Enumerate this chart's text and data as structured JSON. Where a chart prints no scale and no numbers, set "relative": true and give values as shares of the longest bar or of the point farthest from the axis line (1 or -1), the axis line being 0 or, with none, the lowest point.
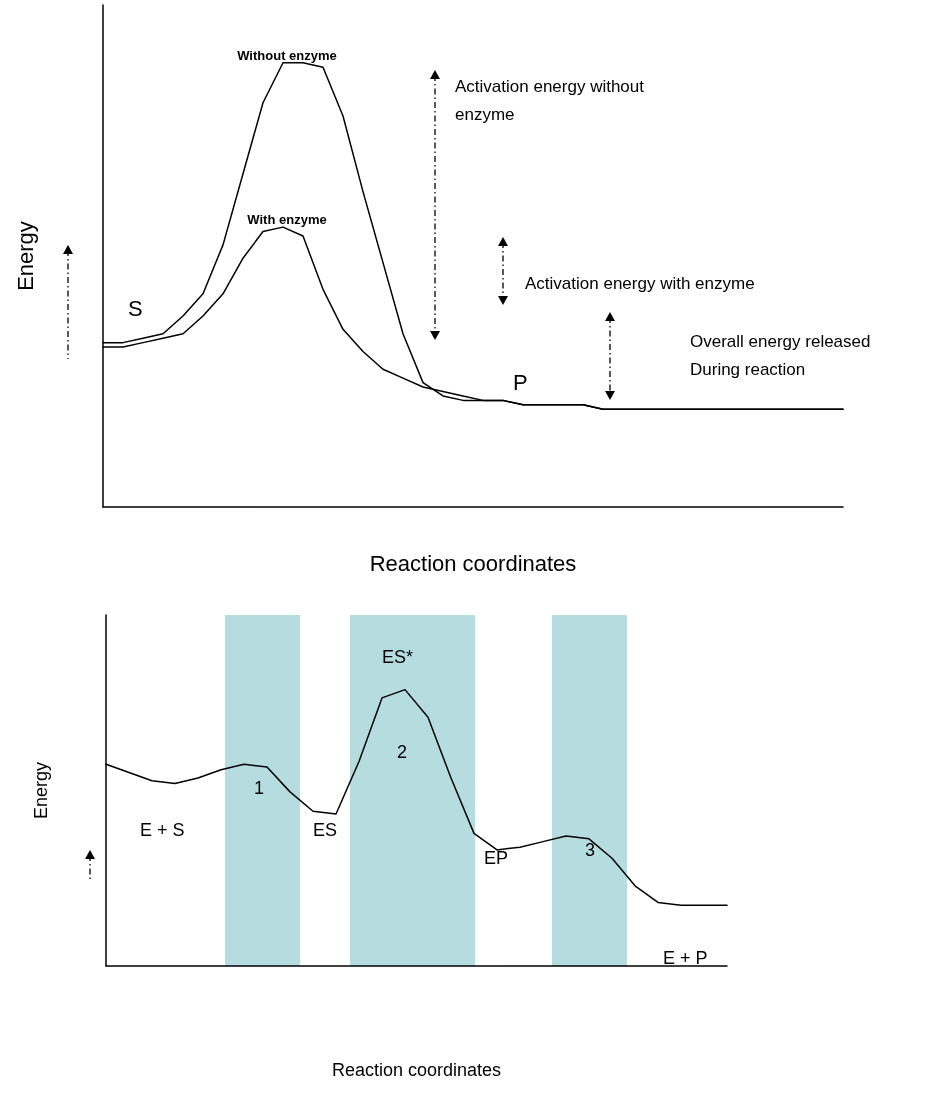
{
  "chart_data": [
    {
      "type": "line",
      "relative": true,
      "xlabel": "Reaction coordinates",
      "ylabel": "Energy",
      "marker": "none",
      "line_style": "solid",
      "categories": [
        null,
        null,
        null,
        null,
        null,
        null,
        null,
        null,
        null,
        null,
        null,
        null,
        null,
        null,
        null,
        null,
        null,
        null,
        null,
        null,
        null,
        null,
        null,
        null,
        null,
        null,
        null,
        null,
        null,
        null,
        null,
        null,
        null,
        null,
        null,
        null,
        null,
        null
      ],
      "series": [
        {
          "name": "Without enzyme",
          "color": "#000000",
          "values": [
            0.37,
            0.37,
            0.38,
            0.39,
            0.43,
            0.48,
            0.59,
            0.75,
            0.91,
            1.0,
            1.0,
            0.99,
            0.88,
            0.71,
            0.55,
            0.39,
            0.28,
            0.25,
            0.24,
            0.24,
            0.24,
            0.23,
            0.23,
            0.23,
            0.23,
            0.22,
            0.22,
            0.22,
            0.22,
            0.22,
            0.22,
            0.22,
            0.22,
            0.22,
            0.22,
            0.22,
            0.22,
            0.22
          ]
        },
        {
          "name": "With enzyme",
          "color": "#000000",
          "values": [
            0.36,
            0.36,
            0.37,
            0.38,
            0.39,
            0.43,
            0.48,
            0.56,
            0.62,
            0.63,
            0.61,
            0.49,
            0.4,
            0.35,
            0.31,
            0.29,
            0.27,
            0.26,
            0.25,
            0.24,
            0.24,
            0.23,
            0.23,
            0.23,
            0.23,
            0.22,
            0.22,
            0.22,
            0.22,
            0.22,
            0.22,
            0.22,
            0.22,
            0.22,
            0.22,
            0.22,
            0.22,
            0.22
          ]
        }
      ],
      "annotations": [
        "S",
        "P",
        "Activation energy without\nenzyme",
        "Activation energy with enzyme",
        "Overall energy released\nDuring reaction"
      ]
    },
    {
      "type": "line",
      "relative": true,
      "xlabel": "Reaction coordinates",
      "ylabel": "Energy",
      "marker": "none",
      "line_style": "solid",
      "categories": [
        null,
        null,
        null,
        null,
        null,
        null,
        null,
        null,
        null,
        null,
        null,
        null,
        null,
        null,
        null,
        null,
        null,
        null,
        null,
        null,
        null,
        null,
        null,
        null,
        null,
        null,
        null,
        null
      ],
      "series": [
        {
          "color": "#000000",
          "values": [
            0.73,
            0.7,
            0.67,
            0.66,
            0.68,
            0.71,
            0.73,
            0.72,
            0.63,
            0.56,
            0.55,
            0.74,
            0.97,
            1.0,
            0.9,
            0.68,
            0.48,
            0.42,
            0.43,
            0.45,
            0.47,
            0.46,
            0.39,
            0.29,
            0.23,
            0.22,
            0.22,
            0.22
          ]
        }
      ],
      "annotations": [
        "E + S",
        "1",
        "ES",
        "ES*",
        "2",
        "EP",
        "3",
        "E + P"
      ]
    }
  ]
}
